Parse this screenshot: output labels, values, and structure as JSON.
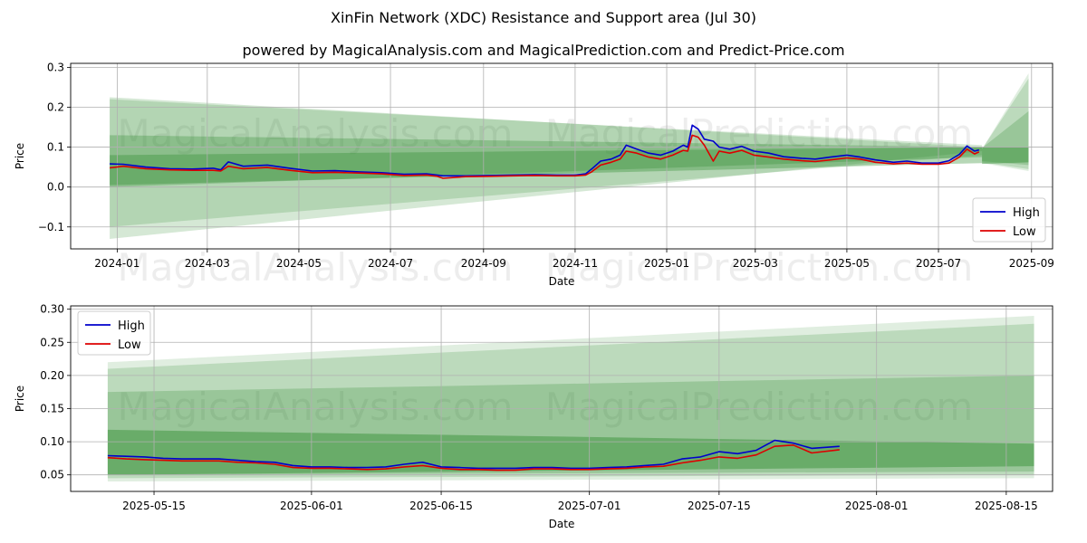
{
  "title": "XinFin Network (XDC) Resistance and Support area (Jul 30)",
  "subtitle": "powered by MagicalAnalysis.com and MagicalPrediction.com and Predict-Price.com",
  "watermarks": [
    "MagicalAnalysis.com",
    "MagicalPrediction.com"
  ],
  "colors": {
    "high": "#0000cc",
    "low": "#dd0000",
    "band": "#2e8b2e",
    "grid": "#b0b0b0"
  },
  "chart_data": [
    {
      "type": "line",
      "xlabel": "Date",
      "ylabel": "Price",
      "grid": true,
      "legend_placement": "lower-right",
      "xlim": [
        "2023-12-01",
        "2025-09-15"
      ],
      "ylim": [
        -0.155,
        0.31
      ],
      "x_ticks": [
        "2024-01",
        "2024-03",
        "2024-05",
        "2024-07",
        "2024-09",
        "2024-11",
        "2025-01",
        "2025-03",
        "2025-05",
        "2025-07",
        "2025-09"
      ],
      "x_tick_dates": [
        "2024-01-01",
        "2024-03-01",
        "2024-05-01",
        "2024-07-01",
        "2024-09-01",
        "2024-11-01",
        "2025-01-01",
        "2025-03-01",
        "2025-05-01",
        "2025-07-01",
        "2025-09-01"
      ],
      "y_ticks": [
        -0.1,
        0.0,
        0.1,
        0.2,
        0.3
      ],
      "y_tick_labels": [
        "−0.1",
        "0.0",
        "0.1",
        "0.2",
        "0.3"
      ],
      "bands": [
        {
          "x": [
            "2023-12-27",
            "2025-07-30"
          ],
          "upper": [
            0.225,
            0.1
          ],
          "lower": [
            -0.13,
            0.09
          ],
          "opacity": 0.2
        },
        {
          "x": [
            "2023-12-27",
            "2025-07-30"
          ],
          "upper": [
            0.22,
            0.105
          ],
          "lower": [
            -0.1,
            0.08
          ],
          "opacity": 0.2
        },
        {
          "x": [
            "2023-12-27",
            "2025-07-30"
          ],
          "upper": [
            0.13,
            0.1
          ],
          "lower": [
            0.0,
            0.075
          ],
          "opacity": 0.3
        },
        {
          "x": [
            "2023-12-27",
            "2025-07-30"
          ],
          "upper": [
            0.08,
            0.1
          ],
          "lower": [
            0.005,
            0.06
          ],
          "opacity": 0.35
        },
        {
          "x": [
            "2025-07-30",
            "2025-08-30"
          ],
          "upper": [
            0.095,
            0.285
          ],
          "lower": [
            0.06,
            0.04
          ],
          "opacity": 0.15
        },
        {
          "x": [
            "2025-07-30",
            "2025-08-30"
          ],
          "upper": [
            0.095,
            0.272
          ],
          "lower": [
            0.062,
            0.045
          ],
          "opacity": 0.2
        },
        {
          "x": [
            "2025-07-30",
            "2025-08-30"
          ],
          "upper": [
            0.098,
            0.19
          ],
          "lower": [
            0.065,
            0.055
          ],
          "opacity": 0.25
        },
        {
          "x": [
            "2025-07-30",
            "2025-08-30"
          ],
          "upper": [
            0.1,
            0.1
          ],
          "lower": [
            0.058,
            0.062
          ],
          "opacity": 0.45
        }
      ],
      "series": [
        {
          "name": "High",
          "x": [
            "2023-12-27",
            "2024-01-05",
            "2024-01-20",
            "2024-02-05",
            "2024-02-20",
            "2024-03-05",
            "2024-03-10",
            "2024-03-15",
            "2024-03-25",
            "2024-04-10",
            "2024-04-25",
            "2024-05-10",
            "2024-05-25",
            "2024-06-10",
            "2024-06-25",
            "2024-07-10",
            "2024-07-25",
            "2024-08-01",
            "2024-08-05",
            "2024-08-20",
            "2024-09-05",
            "2024-09-20",
            "2024-10-05",
            "2024-10-20",
            "2024-11-01",
            "2024-11-08",
            "2024-11-12",
            "2024-11-18",
            "2024-11-25",
            "2024-12-01",
            "2024-12-05",
            "2024-12-12",
            "2024-12-20",
            "2024-12-28",
            "2025-01-05",
            "2025-01-12",
            "2025-01-15",
            "2025-01-18",
            "2025-01-22",
            "2025-01-26",
            "2025-02-01",
            "2025-02-05",
            "2025-02-12",
            "2025-02-20",
            "2025-02-28",
            "2025-03-10",
            "2025-03-20",
            "2025-04-01",
            "2025-04-10",
            "2025-04-20",
            "2025-05-01",
            "2025-05-10",
            "2025-05-20",
            "2025-06-01",
            "2025-06-10",
            "2025-06-20",
            "2025-07-01",
            "2025-07-08",
            "2025-07-15",
            "2025-07-20",
            "2025-07-25",
            "2025-07-28"
          ],
          "y": [
            0.058,
            0.057,
            0.05,
            0.046,
            0.045,
            0.047,
            0.043,
            0.063,
            0.052,
            0.055,
            0.047,
            0.04,
            0.041,
            0.038,
            0.036,
            0.032,
            0.033,
            0.03,
            0.028,
            0.028,
            0.029,
            0.03,
            0.031,
            0.03,
            0.03,
            0.033,
            0.045,
            0.065,
            0.07,
            0.08,
            0.105,
            0.095,
            0.085,
            0.08,
            0.09,
            0.105,
            0.1,
            0.155,
            0.145,
            0.12,
            0.115,
            0.1,
            0.095,
            0.102,
            0.09,
            0.085,
            0.076,
            0.072,
            0.07,
            0.075,
            0.08,
            0.075,
            0.068,
            0.062,
            0.065,
            0.06,
            0.06,
            0.066,
            0.082,
            0.103,
            0.09,
            0.093
          ]
        },
        {
          "name": "Low",
          "x": [
            "2023-12-27",
            "2024-01-05",
            "2024-01-20",
            "2024-02-05",
            "2024-02-20",
            "2024-03-05",
            "2024-03-10",
            "2024-03-15",
            "2024-03-25",
            "2024-04-10",
            "2024-04-25",
            "2024-05-10",
            "2024-05-25",
            "2024-06-10",
            "2024-06-25",
            "2024-07-10",
            "2024-07-25",
            "2024-08-01",
            "2024-08-05",
            "2024-08-20",
            "2024-09-05",
            "2024-09-20",
            "2024-10-05",
            "2024-10-20",
            "2024-11-01",
            "2024-11-08",
            "2024-11-12",
            "2024-11-18",
            "2024-11-25",
            "2024-12-01",
            "2024-12-05",
            "2024-12-12",
            "2024-12-20",
            "2024-12-28",
            "2025-01-05",
            "2025-01-12",
            "2025-01-15",
            "2025-01-18",
            "2025-01-22",
            "2025-01-26",
            "2025-02-01",
            "2025-02-05",
            "2025-02-12",
            "2025-02-20",
            "2025-02-28",
            "2025-03-10",
            "2025-03-20",
            "2025-04-01",
            "2025-04-10",
            "2025-04-20",
            "2025-05-01",
            "2025-05-10",
            "2025-05-20",
            "2025-06-01",
            "2025-06-10",
            "2025-06-20",
            "2025-07-01",
            "2025-07-08",
            "2025-07-15",
            "2025-07-20",
            "2025-07-25",
            "2025-07-28"
          ],
          "y": [
            0.048,
            0.052,
            0.046,
            0.043,
            0.042,
            0.042,
            0.04,
            0.052,
            0.046,
            0.049,
            0.042,
            0.036,
            0.037,
            0.035,
            0.033,
            0.029,
            0.03,
            0.027,
            0.022,
            0.026,
            0.027,
            0.028,
            0.029,
            0.028,
            0.028,
            0.03,
            0.038,
            0.055,
            0.062,
            0.07,
            0.09,
            0.085,
            0.075,
            0.07,
            0.08,
            0.092,
            0.09,
            0.13,
            0.125,
            0.105,
            0.065,
            0.09,
            0.085,
            0.092,
            0.08,
            0.075,
            0.07,
            0.066,
            0.064,
            0.068,
            0.073,
            0.07,
            0.062,
            0.058,
            0.06,
            0.057,
            0.057,
            0.06,
            0.075,
            0.095,
            0.083,
            0.088
          ]
        }
      ]
    },
    {
      "type": "line",
      "xlabel": "Date",
      "ylabel": "Price",
      "grid": true,
      "legend_placement": "upper-left",
      "xlim": [
        "2025-05-06",
        "2025-08-20"
      ],
      "ylim": [
        0.025,
        0.305
      ],
      "x_ticks": [
        "2025-05-15",
        "2025-06-01",
        "2025-06-15",
        "2025-07-01",
        "2025-07-15",
        "2025-08-01",
        "2025-08-15"
      ],
      "x_tick_dates": [
        "2025-05-15",
        "2025-06-01",
        "2025-06-15",
        "2025-07-01",
        "2025-07-15",
        "2025-08-01",
        "2025-08-15"
      ],
      "y_ticks": [
        0.05,
        0.1,
        0.15,
        0.2,
        0.25,
        0.3
      ],
      "y_tick_labels": [
        "0.05",
        "0.10",
        "0.15",
        "0.20",
        "0.25",
        "0.30"
      ],
      "bands": [
        {
          "x": [
            "2025-05-10",
            "2025-08-18"
          ],
          "upper": [
            0.22,
            0.29
          ],
          "lower": [
            0.04,
            0.045
          ],
          "opacity": 0.15
        },
        {
          "x": [
            "2025-05-10",
            "2025-08-18"
          ],
          "upper": [
            0.21,
            0.278
          ],
          "lower": [
            0.045,
            0.05
          ],
          "opacity": 0.2
        },
        {
          "x": [
            "2025-05-10",
            "2025-08-18"
          ],
          "upper": [
            0.175,
            0.2
          ],
          "lower": [
            0.05,
            0.055
          ],
          "opacity": 0.25
        },
        {
          "x": [
            "2025-05-10",
            "2025-08-18"
          ],
          "upper": [
            0.118,
            0.097
          ],
          "lower": [
            0.05,
            0.063
          ],
          "opacity": 0.45
        }
      ],
      "series": [
        {
          "name": "High",
          "x": [
            "2025-05-10",
            "2025-05-12",
            "2025-05-14",
            "2025-05-16",
            "2025-05-18",
            "2025-05-20",
            "2025-05-22",
            "2025-05-24",
            "2025-05-26",
            "2025-05-28",
            "2025-05-30",
            "2025-06-01",
            "2025-06-03",
            "2025-06-05",
            "2025-06-07",
            "2025-06-09",
            "2025-06-11",
            "2025-06-13",
            "2025-06-15",
            "2025-06-17",
            "2025-06-19",
            "2025-06-21",
            "2025-06-23",
            "2025-06-25",
            "2025-06-27",
            "2025-06-29",
            "2025-07-01",
            "2025-07-03",
            "2025-07-05",
            "2025-07-07",
            "2025-07-09",
            "2025-07-11",
            "2025-07-13",
            "2025-07-15",
            "2025-07-17",
            "2025-07-19",
            "2025-07-21",
            "2025-07-23",
            "2025-07-25",
            "2025-07-28"
          ],
          "y": [
            0.079,
            0.078,
            0.077,
            0.075,
            0.074,
            0.074,
            0.074,
            0.072,
            0.07,
            0.069,
            0.064,
            0.062,
            0.062,
            0.061,
            0.061,
            0.062,
            0.066,
            0.069,
            0.062,
            0.061,
            0.06,
            0.06,
            0.06,
            0.061,
            0.061,
            0.06,
            0.06,
            0.061,
            0.062,
            0.064,
            0.066,
            0.074,
            0.077,
            0.085,
            0.082,
            0.087,
            0.102,
            0.098,
            0.09,
            0.093
          ]
        },
        {
          "name": "Low",
          "x": [
            "2025-05-10",
            "2025-05-12",
            "2025-05-14",
            "2025-05-16",
            "2025-05-18",
            "2025-05-20",
            "2025-05-22",
            "2025-05-24",
            "2025-05-26",
            "2025-05-28",
            "2025-05-30",
            "2025-06-01",
            "2025-06-03",
            "2025-06-05",
            "2025-06-07",
            "2025-06-09",
            "2025-06-11",
            "2025-06-13",
            "2025-06-15",
            "2025-06-17",
            "2025-06-19",
            "2025-06-21",
            "2025-06-23",
            "2025-06-25",
            "2025-06-27",
            "2025-06-29",
            "2025-07-01",
            "2025-07-03",
            "2025-07-05",
            "2025-07-07",
            "2025-07-09",
            "2025-07-11",
            "2025-07-13",
            "2025-07-15",
            "2025-07-17",
            "2025-07-19",
            "2025-07-21",
            "2025-07-23",
            "2025-07-25",
            "2025-07-28"
          ],
          "y": [
            0.076,
            0.074,
            0.073,
            0.072,
            0.071,
            0.071,
            0.071,
            0.069,
            0.068,
            0.066,
            0.061,
            0.06,
            0.06,
            0.059,
            0.058,
            0.059,
            0.062,
            0.064,
            0.06,
            0.058,
            0.058,
            0.057,
            0.057,
            0.059,
            0.059,
            0.058,
            0.058,
            0.059,
            0.06,
            0.062,
            0.063,
            0.068,
            0.072,
            0.077,
            0.075,
            0.08,
            0.093,
            0.095,
            0.083,
            0.088
          ]
        }
      ]
    }
  ]
}
